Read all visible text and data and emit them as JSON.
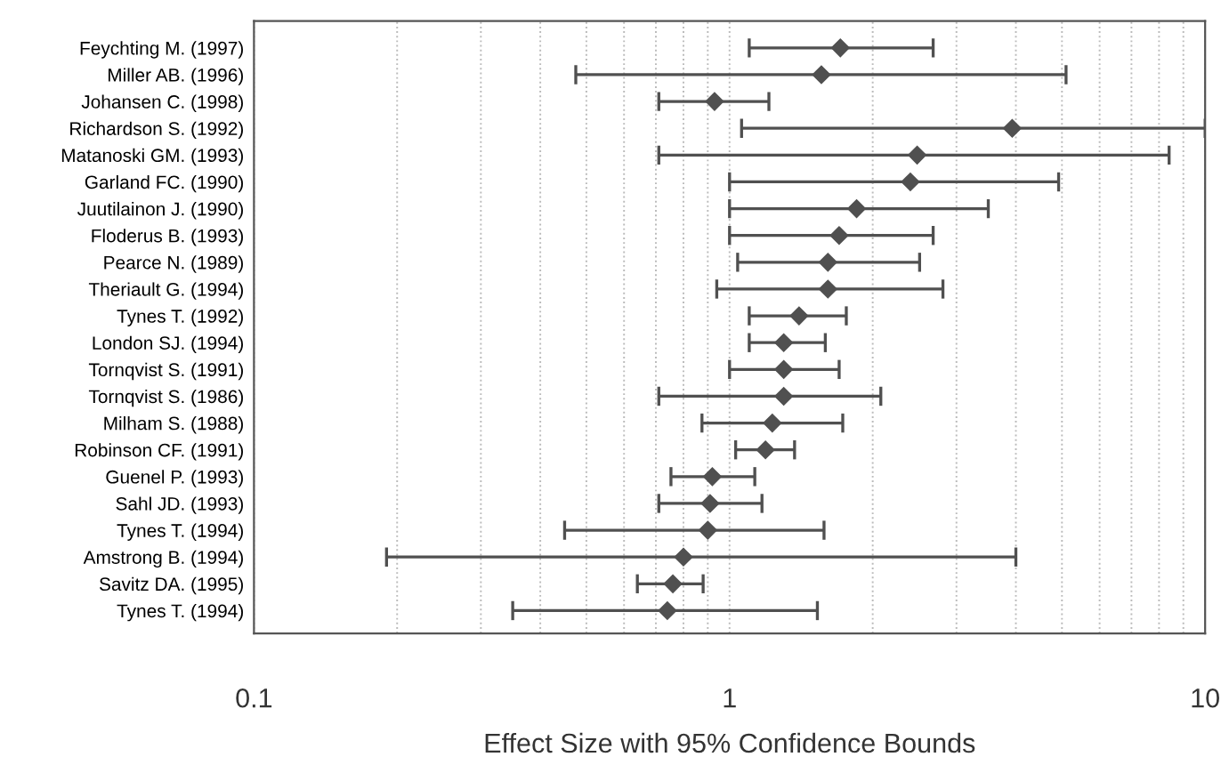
{
  "chart_data": {
    "type": "scatter",
    "orientation": "horizontal",
    "xlabel": "Effect Size with 95% Confidence Bounds",
    "log": "x",
    "categories": [
      "Feychting M. (1997)",
      "Miller AB. (1996)",
      "Johansen C. (1998)",
      "Richardson S. (1992)",
      "Matanoski GM. (1993)",
      "Garland FC. (1990)",
      "Juutilainon J. (1990)",
      "Floderus B. (1993)",
      "Pearce N. (1989)",
      "Theriault G. (1994)",
      "Tynes T. (1992)",
      "London SJ. (1994)",
      "Tornqvist S. (1991)",
      "Tornqvist S. (1986)",
      "Milham S. (1988)",
      "Robinson CF. (1991)",
      "Guenel P. (1993)",
      "Sahl JD. (1993)",
      "Tynes T. (1994)",
      "Amstrong B. (1994)",
      "Savitz DA. (1995)",
      "Tynes T. (1994)"
    ],
    "values": [
      1.71,
      1.56,
      0.93,
      3.93,
      2.48,
      2.4,
      1.85,
      1.7,
      1.61,
      1.61,
      1.4,
      1.3,
      1.3,
      1.3,
      1.23,
      1.19,
      0.92,
      0.91,
      0.9,
      0.8,
      0.76,
      0.74
    ],
    "errors": [
      [
        1.1,
        2.68
      ],
      [
        0.475,
        5.1
      ],
      [
        0.71,
        1.21
      ],
      [
        1.06,
        10
      ],
      [
        0.71,
        8.4
      ],
      [
        1.0,
        4.92
      ],
      [
        1.0,
        3.5
      ],
      [
        1.0,
        2.68
      ],
      [
        1.04,
        2.51
      ],
      [
        0.94,
        2.81
      ],
      [
        1.1,
        1.76
      ],
      [
        1.1,
        1.59
      ],
      [
        1.0,
        1.7
      ],
      [
        0.71,
        2.08
      ],
      [
        0.875,
        1.73
      ],
      [
        1.03,
        1.37
      ],
      [
        0.753,
        1.13
      ],
      [
        0.71,
        1.17
      ],
      [
        0.45,
        1.58
      ],
      [
        0.19,
        4.0
      ],
      [
        0.64,
        0.88
      ],
      [
        0.35,
        1.53
      ]
    ],
    "color": "#505050",
    "marker": "diamond",
    "grid": "x",
    "xlim": [
      0.1,
      10
    ],
    "xticks": [
      0.1,
      {
        "value": 0.2,
        "label": null
      },
      {
        "value": 0.3,
        "label": null
      },
      {
        "value": 0.4,
        "label": null
      },
      {
        "value": 0.5,
        "label": null
      },
      {
        "value": 0.6,
        "label": null
      },
      {
        "value": 0.7,
        "label": null
      },
      {
        "value": 0.8,
        "label": null
      },
      {
        "value": 0.9,
        "label": null
      },
      1,
      {
        "value": 2,
        "label": null
      },
      {
        "value": 3,
        "label": null
      },
      {
        "value": 4,
        "label": null
      },
      {
        "value": 5,
        "label": null
      },
      {
        "value": 6,
        "label": null
      },
      {
        "value": 7,
        "label": null
      },
      {
        "value": 8,
        "label": null
      },
      {
        "value": 9,
        "label": null
      },
      10
    ]
  }
}
